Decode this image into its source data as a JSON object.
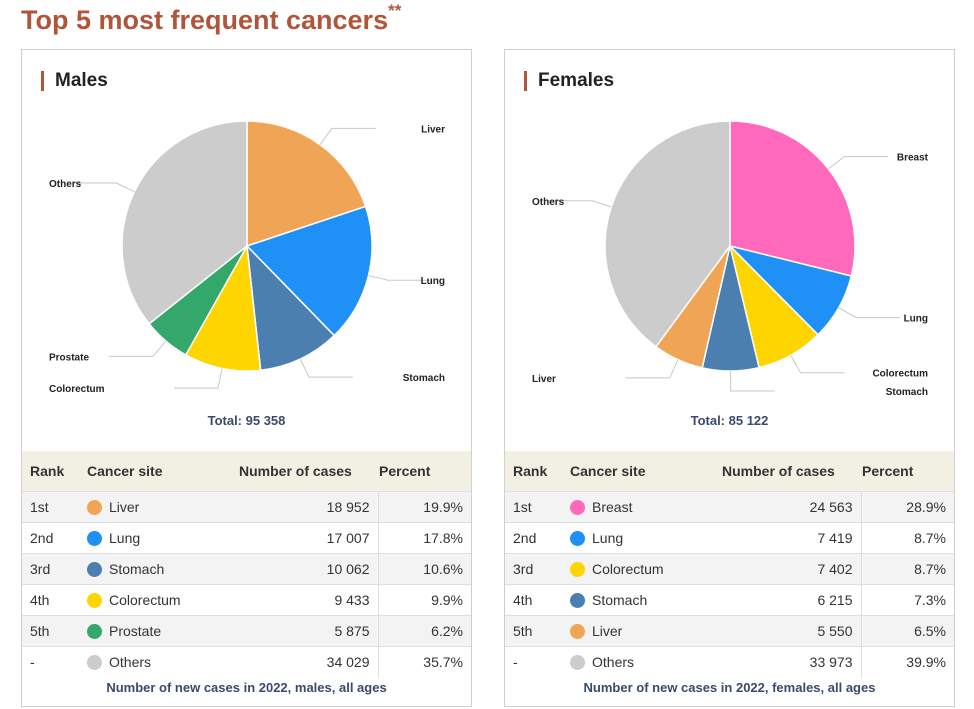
{
  "title": "Top 5 most frequent cancers",
  "title_mark": "**",
  "colors": {
    "title": "#b0553a",
    "Liver": "#f0a556",
    "Lung": "#1f90f5",
    "Stomach": "#4a7fb0",
    "Colorectum": "#ffd500",
    "Prostate": "#33a86a",
    "Breast": "#ff69bc",
    "Others": "#cccccc"
  },
  "table_headers": {
    "rank": "Rank",
    "site": "Cancer site",
    "number": "Number of cases",
    "percent": "Percent"
  },
  "chart_data": [
    {
      "type": "pie",
      "title": "Males",
      "total_label": "Total: 95 358",
      "caption": "Number of new cases in 2022, males, all ages",
      "slices": [
        {
          "label": "Liver",
          "rank": "1st",
          "value": 18952,
          "value_label": "18 952",
          "percent": "19.9%"
        },
        {
          "label": "Lung",
          "rank": "2nd",
          "value": 17007,
          "value_label": "17 007",
          "percent": "17.8%"
        },
        {
          "label": "Stomach",
          "rank": "3rd",
          "value": 10062,
          "value_label": "10 062",
          "percent": "10.6%"
        },
        {
          "label": "Colorectum",
          "rank": "4th",
          "value": 9433,
          "value_label": "9 433",
          "percent": "9.9%"
        },
        {
          "label": "Prostate",
          "rank": "5th",
          "value": 5875,
          "value_label": "5 875",
          "percent": "6.2%"
        },
        {
          "label": "Others",
          "rank": "-",
          "value": 34029,
          "value_label": "34 029",
          "percent": "35.7%"
        }
      ]
    },
    {
      "type": "pie",
      "title": "Females",
      "total_label": "Total: 85 122",
      "caption": "Number of new cases in 2022, females, all ages",
      "slices": [
        {
          "label": "Breast",
          "rank": "1st",
          "value": 24563,
          "value_label": "24 563",
          "percent": "28.9%"
        },
        {
          "label": "Lung",
          "rank": "2nd",
          "value": 7419,
          "value_label": "7 419",
          "percent": "8.7%"
        },
        {
          "label": "Colorectum",
          "rank": "3rd",
          "value": 7402,
          "value_label": "7 402",
          "percent": "8.7%"
        },
        {
          "label": "Stomach",
          "rank": "4th",
          "value": 6215,
          "value_label": "6 215",
          "percent": "7.3%"
        },
        {
          "label": "Liver",
          "rank": "5th",
          "value": 5550,
          "value_label": "5 550",
          "percent": "6.5%"
        },
        {
          "label": "Others",
          "rank": "-",
          "value": 33973,
          "value_label": "33 973",
          "percent": "39.9%"
        }
      ]
    }
  ]
}
